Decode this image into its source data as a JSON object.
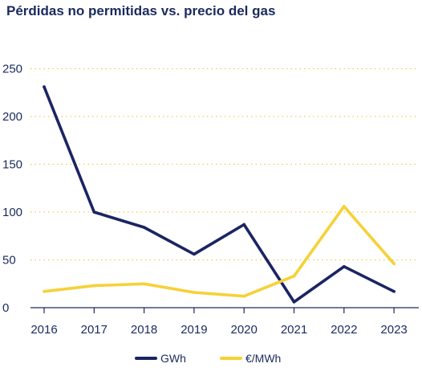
{
  "chart_data": {
    "type": "line",
    "title": "Pérdidas no permitidas vs. precio del gas",
    "xlabel": "",
    "ylabel": "",
    "categories": [
      "2016",
      "2017",
      "2018",
      "2019",
      "2020",
      "2021",
      "2022",
      "2023"
    ],
    "ylim": [
      0,
      250
    ],
    "yticks": [
      "0",
      "50",
      "100",
      "150",
      "200",
      "250"
    ],
    "grid": "horizontal dotted",
    "legend_position": "bottom",
    "series": [
      {
        "name": "GWh",
        "color": "#1b2463",
        "values": [
          231,
          100,
          84,
          56,
          87,
          6,
          43,
          17
        ]
      },
      {
        "name": "€/MWh",
        "color": "#f6d138",
        "values": [
          17,
          23,
          25,
          16,
          12,
          33,
          106,
          46
        ]
      }
    ]
  }
}
